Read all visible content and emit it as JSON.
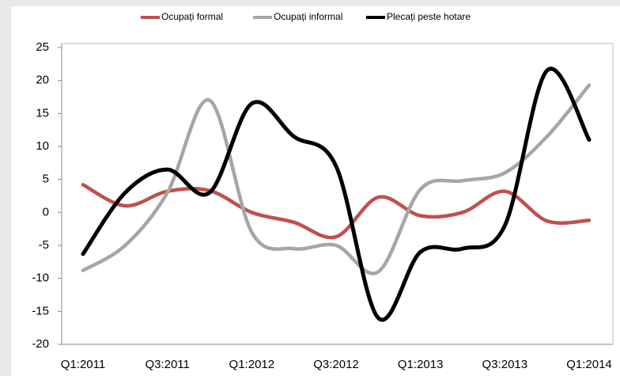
{
  "chart_data": {
    "type": "line",
    "categories": [
      "Q1:2011",
      null,
      "Q3:2011",
      null,
      "Q1:2012",
      null,
      "Q3:2012",
      null,
      "Q1:2013",
      null,
      "Q3:2013",
      null,
      "Q1:2014"
    ],
    "series": [
      {
        "name": "Ocupați formal",
        "color": "#c0504d",
        "values": [
          4.2,
          1.0,
          3.2,
          3.3,
          0.0,
          -1.5,
          -3.7,
          2.3,
          -0.5,
          0.0,
          3.2,
          -1.3,
          -1.2
        ]
      },
      {
        "name": "Ocupați informal",
        "color": "#a6a6a6",
        "values": [
          -8.8,
          -5.0,
          3.0,
          17.0,
          -3.0,
          -5.5,
          -5.0,
          -9.0,
          3.5,
          4.8,
          6.0,
          11.5,
          19.3
        ]
      },
      {
        "name": "Plecați peste hotare",
        "color": "#000000",
        "values": [
          -6.3,
          3.0,
          6.5,
          3.0,
          16.5,
          11.5,
          7.0,
          -16.0,
          -6.0,
          -5.5,
          -2.0,
          21.5,
          11.0
        ]
      }
    ],
    "ylim": [
      -20,
      25
    ],
    "yticks": [
      -20,
      -15,
      -10,
      -5,
      0,
      5,
      10,
      15,
      20,
      25
    ],
    "grid": false
  }
}
